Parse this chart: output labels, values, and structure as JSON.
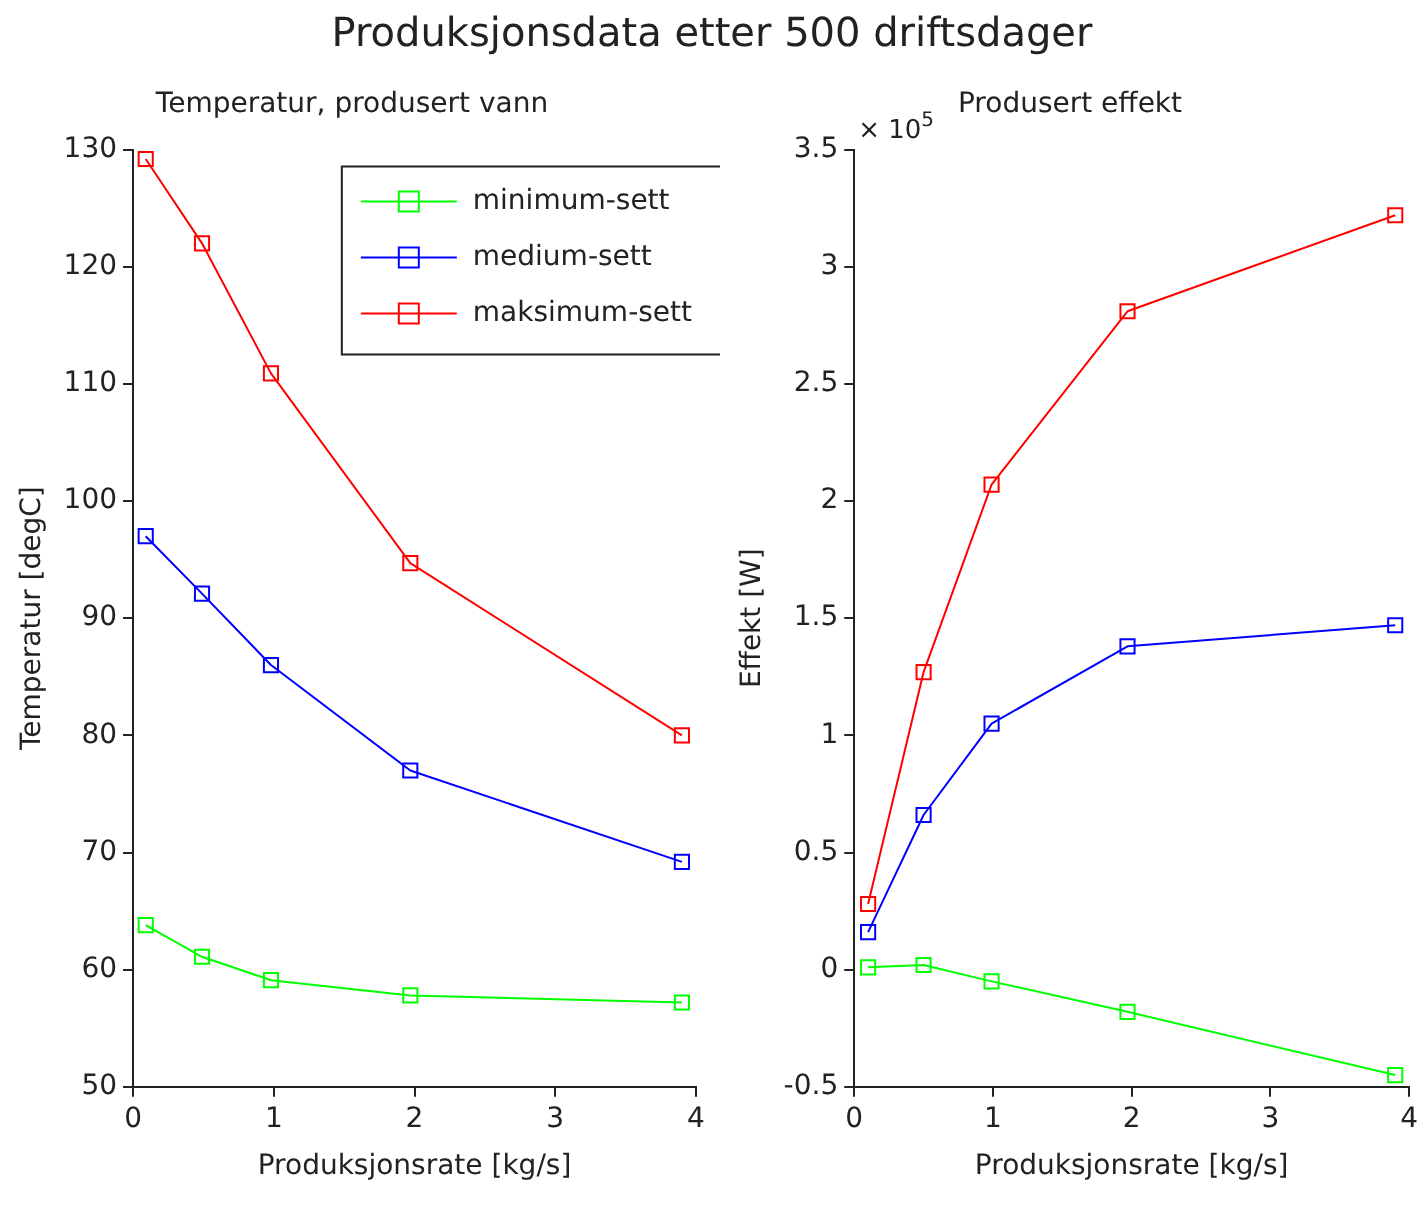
{
  "chart_data": [
    {
      "type": "line",
      "title": "Produksjonsdata etter 500 driftsdager",
      "subtitle": "Temperatur, produsert vann",
      "xlabel": "Produksjonsrate [kg/s]",
      "ylabel": "Temperatur [degC]",
      "x": [
        0.09,
        0.49,
        0.98,
        1.97,
        3.9
      ],
      "xlim": [
        0,
        4
      ],
      "xticks": [
        0,
        1,
        2,
        3,
        4
      ],
      "ylim": [
        50,
        130
      ],
      "yticks": [
        50,
        60,
        70,
        80,
        90,
        100,
        110,
        120,
        130
      ],
      "grid": false,
      "legend": "top right",
      "marker": "square",
      "line_style": "solid",
      "series": [
        {
          "name": "minimum-sett",
          "color": "#00ff00",
          "values": [
            63.8,
            61.1,
            59.1,
            57.8,
            57.2
          ]
        },
        {
          "name": "medium-sett",
          "color": "#0000ff",
          "values": [
            97,
            92.1,
            86,
            77,
            69.2
          ]
        },
        {
          "name": "maksimum-sett",
          "color": "#ff0000",
          "values": [
            129.2,
            122,
            110.9,
            94.7,
            80
          ]
        }
      ]
    },
    {
      "type": "line",
      "subtitle": "Produsert effekt",
      "xlabel": "Produksjonsrate [kg/s]",
      "ylabel": "Effekt [W]",
      "annotations": [
        "× 10$^{5}$"
      ],
      "x": [
        0.1,
        0.5,
        0.99,
        1.97,
        3.9
      ],
      "xlim": [
        0,
        4
      ],
      "xticks": [
        0,
        1,
        2,
        3,
        4
      ],
      "ylim": [
        -0.5,
        3.5
      ],
      "yticks": [
        -0.5,
        0,
        0.5,
        1,
        1.5,
        2,
        2.5,
        3,
        3.5
      ],
      "grid": false,
      "legend": false,
      "marker": "square",
      "line_style": "solid",
      "series": [
        {
          "color": "#00ff00",
          "values": [
            0.01,
            0.02,
            -0.05,
            -0.18,
            -0.45
          ]
        },
        {
          "color": "#0000ff",
          "values": [
            0.16,
            0.66,
            1.05,
            1.38,
            1.47
          ]
        },
        {
          "color": "#ff0000",
          "values": [
            0.28,
            1.27,
            2.07,
            2.81,
            3.22
          ]
        }
      ]
    }
  ]
}
